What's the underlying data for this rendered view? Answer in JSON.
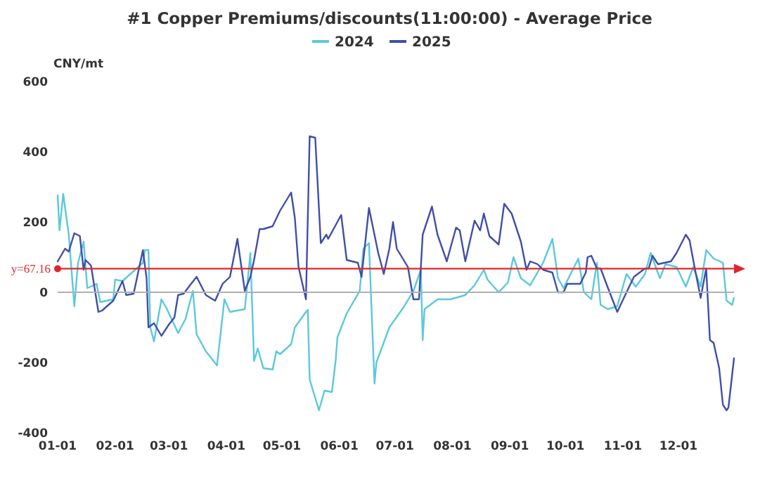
{
  "chart_data": {
    "type": "line",
    "title": "#1 Copper Premiums/discounts(11:00:00) - Average Price",
    "ylabel": "CNY/mt",
    "xlim": [
      "--01-01",
      "--12-31"
    ],
    "xticks": [
      {
        "value": "--01-01",
        "label": "01-01"
      },
      {
        "value": "--02-01",
        "label": "02-01"
      },
      {
        "value": "--03-01",
        "label": "03-01"
      },
      {
        "value": "--04-01",
        "label": "04-01"
      },
      {
        "value": "--05-01",
        "label": "05-01"
      },
      {
        "value": "--06-01",
        "label": "06-01"
      },
      {
        "value": "--07-01",
        "label": "07-01"
      },
      {
        "value": "--08-01",
        "label": "08-01"
      },
      {
        "value": "--09-01",
        "label": "09-01"
      },
      {
        "value": "--10-01",
        "label": "10-01"
      },
      {
        "value": "--11-01",
        "label": "11-01"
      },
      {
        "value": "--12-01",
        "label": "12-01"
      }
    ],
    "ylim": [
      -400,
      600
    ],
    "yticks": [
      -400,
      -200,
      0,
      200,
      400,
      600
    ],
    "legend": "top",
    "marker": "none",
    "line_style": "solid",
    "ref_lines": [
      {
        "axis": "y",
        "value": 67.16,
        "label": "y=67.16",
        "color": "#e0262b"
      },
      {
        "axis": "y",
        "value": 0,
        "color": "#b0b0b0"
      }
    ],
    "series": [
      {
        "name": "2024",
        "color": "#5bc8dc",
        "x": [
          "--01-01",
          "--01-02",
          "--01-04",
          "--01-07",
          "--01-10",
          "--01-12",
          "--01-15",
          "--01-17",
          "--01-22",
          "--01-24",
          "--01-31",
          "--02-01",
          "--02-05",
          "--02-16",
          "--02-17",
          "--02-19",
          "--02-20",
          "--02-22",
          "--02-26",
          "--02-29",
          "--03-06",
          "--03-10",
          "--03-14",
          "--03-16",
          "--03-21",
          "--03-27",
          "--03-31",
          "--04-03",
          "--04-11",
          "--04-14",
          "--04-16",
          "--04-18",
          "--04-21",
          "--04-26",
          "--04-28",
          "--04-30",
          "--05-06",
          "--05-08",
          "--05-14",
          "--05-15",
          "--05-16",
          "--05-21",
          "--05-24",
          "--05-28",
          "--05-30",
          "--05-31",
          "--06-05",
          "--06-12",
          "--06-14",
          "--06-17",
          "--06-20",
          "--06-21",
          "--06-28",
          "--07-06",
          "--07-11",
          "--07-15",
          "--07-16",
          "--07-17",
          "--07-24",
          "--07-31",
          "--08-08",
          "--08-13",
          "--08-18",
          "--08-20",
          "--08-26",
          "--08-31",
          "--09-03",
          "--09-07",
          "--09-12",
          "--09-19",
          "--09-24",
          "--09-27",
          "--09-30",
          "--10-08",
          "--10-11",
          "--10-15",
          "--10-18",
          "--10-20",
          "--10-24",
          "--10-29",
          "--11-03",
          "--11-08",
          "--11-13",
          "--11-16",
          "--11-21",
          "--11-24",
          "--11-30",
          "--12-05",
          "--12-09",
          "--12-13",
          "--12-16",
          "--12-20",
          "--12-25",
          "--12-27",
          "--12-30",
          "--12-31"
        ],
        "values": [
          276,
          176,
          280,
          164,
          -40,
          84,
          144,
          12,
          24,
          -28,
          -20,
          36,
          32,
          84,
          120,
          120,
          -100,
          -140,
          -20,
          -48,
          -116,
          -76,
          4,
          -120,
          -168,
          -208,
          -20,
          -56,
          -48,
          112,
          -196,
          -160,
          -216,
          -220,
          -168,
          -176,
          -148,
          -100,
          -56,
          -50,
          -248,
          -336,
          -280,
          -284,
          -196,
          -128,
          -60,
          4,
          124,
          140,
          -260,
          -200,
          -100,
          -40,
          4,
          64,
          -136,
          -48,
          -20,
          -20,
          -8,
          20,
          64,
          36,
          0,
          28,
          100,
          40,
          20,
          84,
          152,
          40,
          12,
          96,
          0,
          -20,
          84,
          -36,
          -48,
          -40,
          52,
          16,
          52,
          112,
          40,
          80,
          72,
          16,
          72,
          16,
          120,
          96,
          84,
          -24,
          -36,
          -16
        ]
      },
      {
        "name": "2025",
        "color": "#3f4fa8",
        "x": [
          "--01-01",
          "--01-05",
          "--01-07",
          "--01-10",
          "--01-13",
          "--01-15",
          "--01-16",
          "--01-19",
          "--01-23",
          "--01-25",
          "--01-31",
          "--02-05",
          "--02-07",
          "--02-11",
          "--02-16",
          "--02-18",
          "--02-19",
          "--02-22",
          "--02-26",
          "--03-01",
          "--03-04",
          "--03-06",
          "--03-09",
          "--03-13",
          "--03-16",
          "--03-21",
          "--03-26",
          "--03-30",
          "--04-03",
          "--04-07",
          "--04-11",
          "--04-14",
          "--04-16",
          "--04-19",
          "--04-21",
          "--04-26",
          "--04-30",
          "--05-06",
          "--05-08",
          "--05-10",
          "--05-14",
          "--05-16",
          "--05-19",
          "--05-22",
          "--05-25",
          "--05-26",
          "--06-02",
          "--06-05",
          "--06-11",
          "--06-13",
          "--06-17",
          "--06-22",
          "--06-25",
          "--06-28",
          "--06-30",
          "--07-02",
          "--07-08",
          "--07-11",
          "--07-14",
          "--07-16",
          "--07-21",
          "--07-24",
          "--07-29",
          "--08-03",
          "--08-05",
          "--08-08",
          "--08-13",
          "--08-16",
          "--08-18",
          "--08-21",
          "--08-26",
          "--08-29",
          "--09-02",
          "--09-07",
          "--09-10",
          "--09-12",
          "--09-16",
          "--09-19",
          "--09-24",
          "--09-27",
          "--09-30",
          "--10-02",
          "--10-09",
          "--10-12",
          "--10-13",
          "--10-15",
          "--10-18",
          "--10-20",
          "--10-24",
          "--10-29",
          "--11-03",
          "--11-07",
          "--11-13",
          "--11-15",
          "--11-17",
          "--11-20",
          "--11-27",
          "--11-30",
          "--12-05",
          "--12-07",
          "--12-10",
          "--12-13",
          "--12-16",
          "--12-18",
          "--12-20",
          "--12-23",
          "--12-25",
          "--12-27",
          "--12-28",
          "--12-31"
        ],
        "values": [
          88,
          124,
          116,
          168,
          160,
          64,
          92,
          76,
          -56,
          -52,
          -24,
          32,
          -8,
          -4,
          120,
          40,
          -100,
          -88,
          -124,
          -92,
          -72,
          -8,
          -4,
          24,
          44,
          -8,
          -24,
          24,
          44,
          152,
          4,
          44,
          92,
          180,
          180,
          188,
          232,
          284,
          212,
          72,
          -20,
          444,
          440,
          140,
          164,
          152,
          220,
          92,
          84,
          44,
          240,
          112,
          52,
          124,
          200,
          124,
          72,
          -20,
          -20,
          164,
          244,
          164,
          88,
          184,
          176,
          88,
          204,
          176,
          224,
          160,
          136,
          252,
          224,
          144,
          64,
          88,
          80,
          64,
          56,
          0,
          0,
          24,
          24,
          56,
          100,
          104,
          68,
          68,
          12,
          -56,
          0,
          44,
          68,
          68,
          104,
          80,
          88,
          112,
          164,
          148,
          64,
          -16,
          68,
          -136,
          -144,
          -216,
          -320,
          -336,
          -328,
          -188
        ]
      }
    ]
  }
}
